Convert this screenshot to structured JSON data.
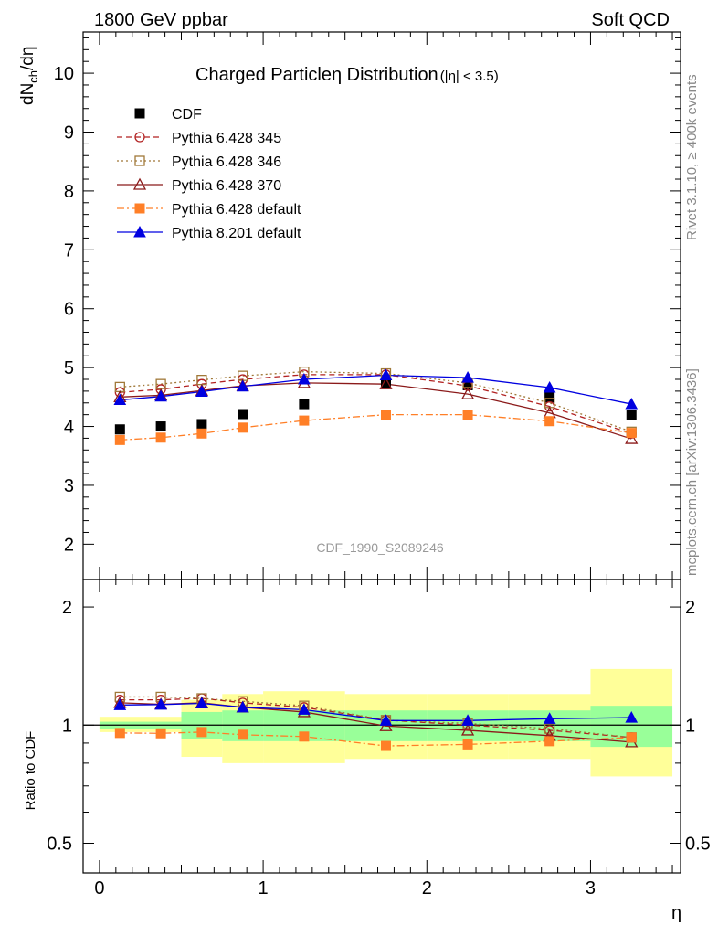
{
  "header": {
    "left": "1800 GeV ppbar",
    "right": "Soft QCD"
  },
  "side_labels": {
    "rivet": "Rivet 3.1.10, ≥ 400k events",
    "mcplots": "mcplots.cern.ch [arXiv:1306.3436]"
  },
  "chart_data": [
    {
      "type": "line",
      "panel": "main",
      "title": "Charged Particleη Distribution",
      "title_suffix": "(|η| < 3.5)",
      "watermark": "CDF_1990_S2089246",
      "ylabel": "dN_ch/dη",
      "xlabel": "",
      "xlim": [
        -0.1,
        3.55
      ],
      "ylim": [
        1.4,
        10.7
      ],
      "yticks": [
        2,
        3,
        4,
        5,
        6,
        7,
        8,
        9,
        10
      ],
      "ytick_labels": [
        "2",
        "3",
        "4",
        "5",
        "6",
        "7",
        "8",
        "9",
        "10"
      ],
      "x": [
        0.125,
        0.375,
        0.625,
        0.875,
        1.25,
        1.75,
        2.25,
        2.75,
        3.25
      ],
      "series": [
        {
          "name": "CDF",
          "color": "#000000",
          "marker": "square",
          "line": "none",
          "values": [
            3.95,
            4.0,
            4.04,
            4.21,
            4.38,
            4.74,
            4.7,
            4.49,
            4.19
          ]
        },
        {
          "name": "Pythia 6.428 345",
          "color": "#b22222",
          "marker": "circle-open",
          "line": "dashed",
          "values": [
            4.58,
            4.63,
            4.72,
            4.8,
            4.88,
            4.88,
            4.69,
            4.34,
            3.88
          ]
        },
        {
          "name": "Pythia 6.428 346",
          "color": "#a07838",
          "marker": "square-open",
          "line": "dotted",
          "values": [
            4.67,
            4.72,
            4.79,
            4.86,
            4.93,
            4.9,
            4.74,
            4.4,
            3.91
          ]
        },
        {
          "name": "Pythia 6.428 370",
          "color": "#8b1a1a",
          "marker": "triangle-open",
          "line": "solid",
          "values": [
            4.5,
            4.53,
            4.61,
            4.69,
            4.74,
            4.72,
            4.55,
            4.23,
            3.79
          ]
        },
        {
          "name": "Pythia 6.428 default",
          "color": "#ff7f27",
          "marker": "square",
          "line": "dashdot",
          "values": [
            3.77,
            3.81,
            3.88,
            3.98,
            4.1,
            4.2,
            4.2,
            4.09,
            3.89
          ]
        },
        {
          "name": "Pythia 8.201 default",
          "color": "#0000e0",
          "marker": "triangle",
          "line": "solid",
          "values": [
            4.45,
            4.51,
            4.59,
            4.68,
            4.8,
            4.87,
            4.83,
            4.66,
            4.38
          ]
        }
      ]
    },
    {
      "type": "line",
      "panel": "ratio",
      "ylabel": "Ratio to CDF",
      "xlabel": "η",
      "xlim": [
        -0.1,
        3.55
      ],
      "ylim": [
        0.42,
        2.35
      ],
      "yticks": [
        0.5,
        1,
        2
      ],
      "ytick_labels": [
        "0.5",
        "1",
        "2"
      ],
      "xticks": [
        0,
        1,
        2,
        3
      ],
      "xtick_labels": [
        "0",
        "1",
        "2",
        "3"
      ],
      "uncertainty_bands": [
        {
          "x_low": 0.0,
          "x_high": 0.5,
          "green": [
            0.98,
            1.02
          ],
          "yellow": [
            0.96,
            1.05
          ]
        },
        {
          "x_low": 0.5,
          "x_high": 0.75,
          "green": [
            0.92,
            1.08
          ],
          "yellow": [
            0.83,
            1.16
          ]
        },
        {
          "x_low": 0.75,
          "x_high": 1.0,
          "green": [
            0.91,
            1.09
          ],
          "yellow": [
            0.8,
            1.2
          ]
        },
        {
          "x_low": 1.0,
          "x_high": 1.5,
          "green": [
            0.91,
            1.09
          ],
          "yellow": [
            0.8,
            1.22
          ]
        },
        {
          "x_low": 1.5,
          "x_high": 2.0,
          "green": [
            0.91,
            1.09
          ],
          "yellow": [
            0.82,
            1.2
          ]
        },
        {
          "x_low": 2.0,
          "x_high": 2.5,
          "green": [
            0.91,
            1.09
          ],
          "yellow": [
            0.82,
            1.2
          ]
        },
        {
          "x_low": 2.5,
          "x_high": 3.0,
          "green": [
            0.91,
            1.09
          ],
          "yellow": [
            0.82,
            1.2
          ]
        },
        {
          "x_low": 3.0,
          "x_high": 3.5,
          "green": [
            0.88,
            1.12
          ],
          "yellow": [
            0.74,
            1.39
          ]
        }
      ],
      "x": [
        0.125,
        0.375,
        0.625,
        0.875,
        1.25,
        1.75,
        2.25,
        2.75,
        3.25
      ],
      "series": [
        {
          "name": "Pythia 6.428 345",
          "color": "#b22222",
          "marker": "circle-open",
          "line": "dashed",
          "values": [
            1.16,
            1.16,
            1.17,
            1.14,
            1.11,
            1.03,
            1.0,
            0.97,
            0.93
          ]
        },
        {
          "name": "Pythia 6.428 346",
          "color": "#a07838",
          "marker": "square-open",
          "line": "dotted",
          "values": [
            1.18,
            1.18,
            1.17,
            1.15,
            1.12,
            1.03,
            1.01,
            0.98,
            0.93
          ]
        },
        {
          "name": "Pythia 6.428 370",
          "color": "#8b1a1a",
          "marker": "triangle-open",
          "line": "solid",
          "values": [
            1.14,
            1.13,
            1.14,
            1.11,
            1.08,
            0.995,
            0.97,
            0.94,
            0.905
          ]
        },
        {
          "name": "Pythia 6.428 default",
          "color": "#ff7f27",
          "marker": "square",
          "line": "dashdot",
          "values": [
            0.955,
            0.953,
            0.96,
            0.945,
            0.935,
            0.885,
            0.893,
            0.91,
            0.93
          ]
        },
        {
          "name": "Pythia 8.201 default",
          "color": "#0000e0",
          "marker": "triangle",
          "line": "solid",
          "values": [
            1.125,
            1.128,
            1.136,
            1.11,
            1.095,
            1.027,
            1.027,
            1.038,
            1.045
          ]
        }
      ]
    }
  ]
}
